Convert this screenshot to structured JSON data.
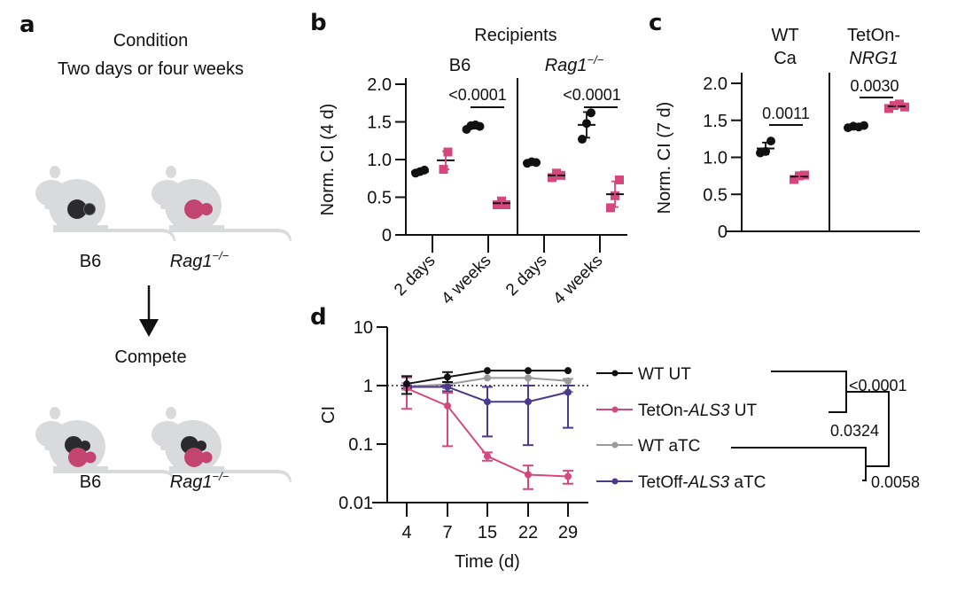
{
  "colors": {
    "black": "#111111",
    "pink": "#d6477e",
    "grey": "#9a9a9a",
    "purple": "#4b3a8c",
    "mouse": "#d9dadb",
    "colony_dark": "#2b2b2d",
    "colony_pink": "#c2446f"
  },
  "panel_a": {
    "letter": "a",
    "title_line1": "Condition",
    "title_line2": "Two days or four weeks",
    "top_mice": [
      {
        "label": "B6",
        "italic": false,
        "colonies": "dark"
      },
      {
        "label_main": "Rag1",
        "label_sup": "−/−",
        "italic": true,
        "colonies": "pink"
      }
    ],
    "arrow_label": "Compete",
    "bottom_mice": [
      {
        "label": "B6",
        "colonies": "mixed"
      },
      {
        "label_main": "Rag1",
        "label_sup": "−/−",
        "colonies": "mixed"
      }
    ]
  },
  "chart_data": [
    {
      "id": "b",
      "letter": "b",
      "type": "scatter",
      "title": "Recipients",
      "ylabel": "Norm. CI (4 d)",
      "ylim": [
        0,
        2.0
      ],
      "yticks": [
        "0",
        "0.5",
        "1.0",
        "1.5",
        "2.0"
      ],
      "ytick_values": [
        0,
        0.5,
        1.0,
        1.5,
        2.0
      ],
      "facets": [
        {
          "label": "B6",
          "italic": false,
          "categories": [
            "2 days",
            "4 weeks"
          ],
          "series": [
            {
              "name": "black",
              "group": "2 days",
              "points": [
                0.82,
                0.84,
                0.86
              ],
              "mean": 0.84,
              "sd": 0.02
            },
            {
              "name": "pink",
              "group": "2 days",
              "points": [
                0.87,
                1.1
              ],
              "mean": 0.99,
              "sd": 0.12
            },
            {
              "name": "black",
              "group": "4 weeks",
              "points": [
                1.4,
                1.45,
                1.46,
                1.44
              ],
              "mean": 1.44,
              "sd": 0.03
            },
            {
              "name": "pink",
              "group": "4 weeks",
              "points": [
                0.4,
                0.45,
                0.4
              ],
              "mean": 0.42,
              "sd": 0.03
            }
          ],
          "pvalue": "<0.0001"
        },
        {
          "label_main": "Rag1",
          "label_sup": "−/−",
          "italic": true,
          "categories": [
            "2 days",
            "4 weeks"
          ],
          "series": [
            {
              "name": "black",
              "group": "2 days",
              "points": [
                0.95,
                0.97,
                0.96
              ],
              "mean": 0.96,
              "sd": 0.01
            },
            {
              "name": "pink",
              "group": "2 days",
              "points": [
                0.76,
                0.82,
                0.79
              ],
              "mean": 0.79,
              "sd": 0.03
            },
            {
              "name": "black",
              "group": "4 weeks",
              "points": [
                1.27,
                1.48,
                1.62
              ],
              "mean": 1.46,
              "sd": 0.17
            },
            {
              "name": "pink",
              "group": "4 weeks",
              "points": [
                0.36,
                0.52,
                0.73
              ],
              "mean": 0.54,
              "sd": 0.17
            }
          ],
          "pvalue": "<0.0001"
        }
      ]
    },
    {
      "id": "c",
      "letter": "c",
      "type": "scatter",
      "ylabel": "Norm. CI (7 d)",
      "ylim": [
        0,
        2.0
      ],
      "yticks": [
        "0",
        "0.5",
        "1.0",
        "1.5",
        "2.0"
      ],
      "ytick_values": [
        0,
        0.5,
        1.0,
        1.5,
        2.0
      ],
      "facets": [
        {
          "label_line1": "WT",
          "label_line2": "Ca",
          "italic2": false,
          "series": [
            {
              "name": "black",
              "points": [
                1.06,
                1.08,
                1.22
              ],
              "mean": 1.12,
              "sd": 0.08
            },
            {
              "name": "pink",
              "points": [
                0.7,
                0.75,
                0.76
              ],
              "mean": 0.74,
              "sd": 0.02
            }
          ],
          "pvalue": "0.0011"
        },
        {
          "label_line1": "TetOn-",
          "label_line2": "NRG1",
          "italic2": true,
          "series": [
            {
              "name": "black",
              "points": [
                1.4,
                1.42,
                1.41,
                1.43
              ],
              "mean": 1.42,
              "sd": 0.01
            },
            {
              "name": "pink",
              "points": [
                1.66,
                1.7,
                1.72,
                1.68
              ],
              "mean": 1.69,
              "sd": 0.02
            }
          ],
          "pvalue": "0.0030"
        }
      ]
    },
    {
      "id": "d",
      "letter": "d",
      "type": "line",
      "xlabel": "Time (d)",
      "ylabel": "CI",
      "yscale": "log",
      "ylim": [
        0.01,
        10
      ],
      "yticks": [
        "0.01",
        "0.1",
        "1",
        "10"
      ],
      "ytick_values": [
        0.01,
        0.1,
        1,
        10
      ],
      "x": [
        4,
        7,
        15,
        22,
        29
      ],
      "xticks": [
        "4",
        "7",
        "15",
        "22",
        "29"
      ],
      "reference_line": 1,
      "series": [
        {
          "name": "WT UT",
          "color_key": "black",
          "parts": [
            {
              "t": "WT UT",
              "i": false
            }
          ],
          "values": [
            1.07,
            1.4,
            1.8,
            1.8,
            1.8
          ],
          "err_low": [
            0.72,
            1.15,
            1.8,
            1.8,
            1.8
          ],
          "err_high": [
            1.45,
            1.7,
            1.8,
            1.8,
            1.8
          ]
        },
        {
          "name": "TetOn-ALS3 UT",
          "color_key": "pink",
          "parts": [
            {
              "t": "TetOn-",
              "i": false
            },
            {
              "t": "ALS3",
              "i": true
            },
            {
              "t": " UT",
              "i": false
            }
          ],
          "values": [
            0.9,
            0.45,
            0.062,
            0.03,
            0.028
          ],
          "err_low": [
            0.4,
            0.092,
            0.052,
            0.017,
            0.021
          ],
          "err_high": [
            1.38,
            0.75,
            0.072,
            0.043,
            0.035
          ]
        },
        {
          "name": "WT aTC",
          "color_key": "grey",
          "parts": [
            {
              "t": "WT aTC",
              "i": false
            }
          ],
          "values": [
            0.97,
            1.05,
            1.35,
            1.35,
            1.2
          ],
          "err_low": [
            0.85,
            0.9,
            1.35,
            1.0,
            0.78
          ],
          "err_high": [
            1.1,
            1.15,
            1.35,
            1.35,
            1.3
          ]
        },
        {
          "name": "TetOff-ALS3 aTC",
          "color_key": "purple",
          "parts": [
            {
              "t": "TetOff-",
              "i": false
            },
            {
              "t": "ALS3",
              "i": true
            },
            {
              "t": " aTC",
              "i": false
            }
          ],
          "values": [
            0.95,
            0.95,
            0.53,
            0.53,
            0.77
          ],
          "err_low": [
            0.9,
            0.8,
            0.135,
            0.096,
            0.19
          ],
          "err_high": [
            1.0,
            1.0,
            0.95,
            1.0,
            1.0
          ]
        }
      ],
      "legend_position": "right",
      "comparisons": [
        {
          "groups": [
            "WT UT",
            "TetOn-ALS3 UT"
          ],
          "pvalue": "<0.0001"
        },
        {
          "groups": [
            "WT aTC",
            "TetOff-ALS3 aTC"
          ],
          "pvalue": "0.0058"
        },
        {
          "groups": [
            "UT pair",
            "aTC pair"
          ],
          "pvalue": "0.0324"
        }
      ]
    }
  ]
}
